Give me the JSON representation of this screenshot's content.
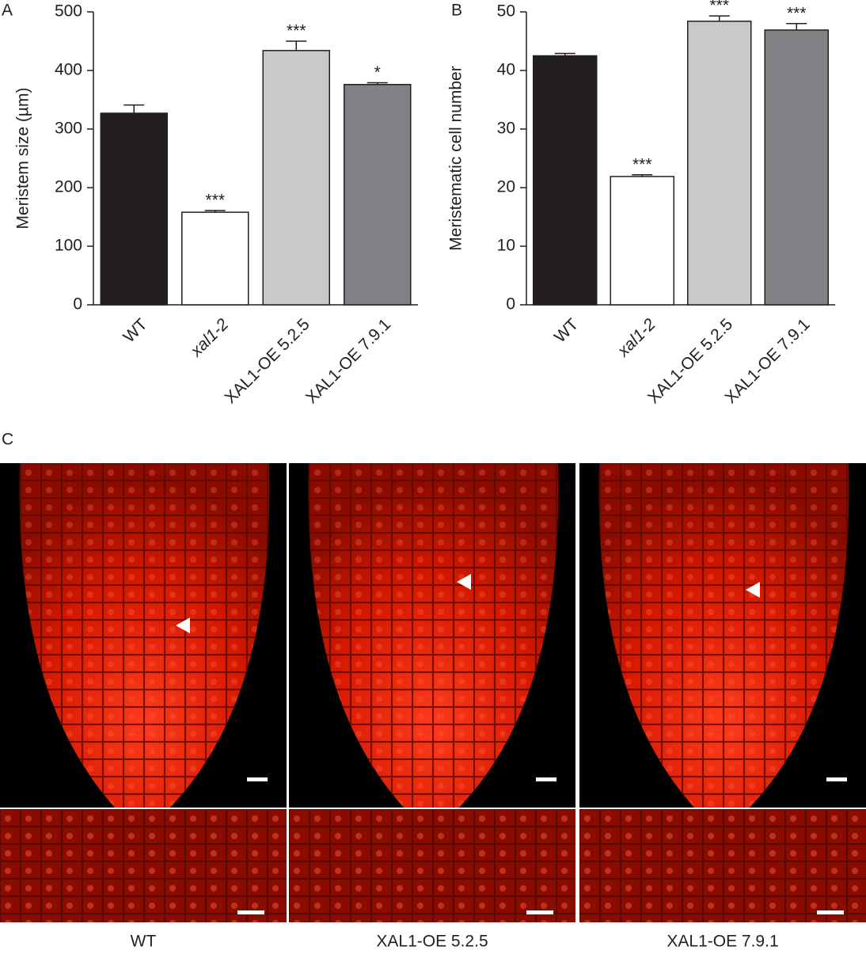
{
  "chart_data": [
    {
      "type": "bar",
      "panel": "A",
      "ylabel": "Meristem size (µm)",
      "categories": [
        "WT",
        "xal1-2",
        "XAL1-OE 5.2.5",
        "XAL1-OE 7.9.1"
      ],
      "values": [
        327,
        158,
        434,
        376
      ],
      "errors": [
        14,
        3,
        16,
        3
      ],
      "annotations": [
        null,
        "***",
        "***",
        "*"
      ],
      "colors": [
        "#231f20",
        "#ffffff",
        "#c8c9cb",
        "#808285"
      ],
      "ylim": [
        0,
        500
      ],
      "yticks": [
        0,
        100,
        200,
        300,
        400,
        500
      ]
    },
    {
      "type": "bar",
      "panel": "B",
      "ylabel": "Meristematic cell number",
      "categories": [
        "WT",
        "xal1-2",
        "XAL1-OE 5.2.5",
        "XAL1-OE 7.9.1"
      ],
      "values": [
        42.5,
        21.9,
        48.4,
        46.9
      ],
      "errors": [
        0.4,
        0.3,
        0.9,
        1.1
      ],
      "annotations": [
        null,
        "***",
        "***",
        "***"
      ],
      "colors": [
        "#231f20",
        "#ffffff",
        "#c8c9cb",
        "#808285"
      ],
      "ylim": [
        0,
        50
      ],
      "yticks": [
        0,
        10,
        20,
        30,
        40,
        50
      ]
    }
  ],
  "panel_c": {
    "label": "C",
    "captions": [
      "WT",
      "XAL1-OE 5.2.5",
      "XAL1-OE 7.9.1"
    ]
  }
}
